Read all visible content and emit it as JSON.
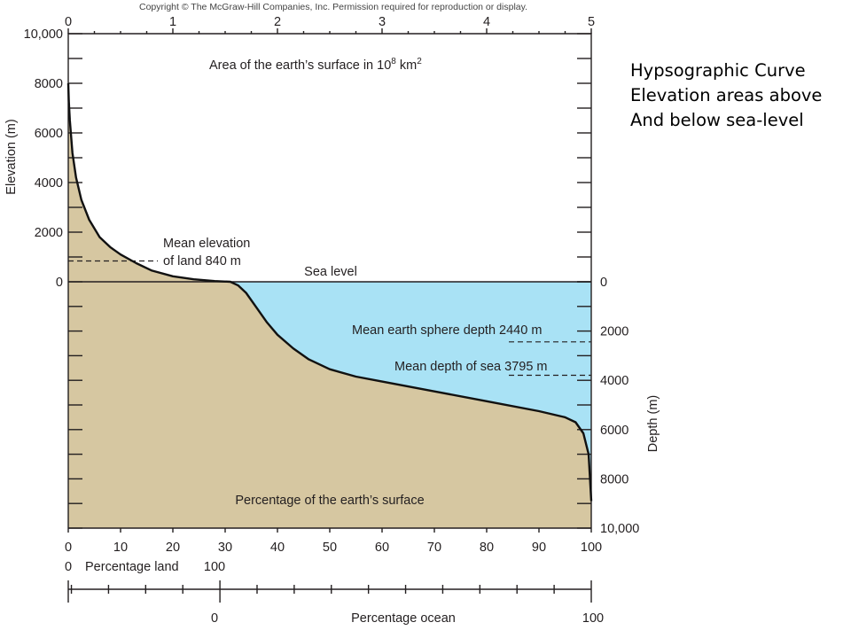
{
  "copyright": "Copyright © The McGraw-Hill Companies, Inc. Permission required for reproduction or display.",
  "side_title": "Hypsographic Curve\nElevation areas above\nAnd below sea-level",
  "chart_data": {
    "type": "area",
    "title": "Hypsographic Curve",
    "top_axis_label": "Area of the earth’s surface in 10",
    "top_axis_exp": "8",
    "top_axis_unit": " km",
    "top_axis_unit_exp": "2",
    "top_ticks": [
      "0",
      "1",
      "2",
      "3",
      "4",
      "5"
    ],
    "top_range": [
      0,
      5
    ],
    "xlabel": "Percentage of the earth’s surface",
    "x_ticks": [
      "0",
      "10",
      "20",
      "30",
      "40",
      "50",
      "60",
      "70",
      "80",
      "90",
      "100"
    ],
    "xlim": [
      0,
      100
    ],
    "ylabel_left": "Elevation (m)",
    "y_ticks_left": [
      "10,000",
      "8000",
      "6000",
      "4000",
      "2000",
      "0"
    ],
    "ylabel_right": "Depth (m)",
    "y_ticks_right": [
      "0",
      "2000",
      "4000",
      "6000",
      "8000",
      "10,000"
    ],
    "ylim": [
      -10000,
      10000
    ],
    "land_axis_label": "Percentage land",
    "land_ticks": [
      "0",
      "100"
    ],
    "ocean_axis_label": "Percentage ocean",
    "ocean_ticks": [
      "0",
      "100"
    ],
    "ocean_axis_range": [
      29,
      100
    ],
    "sea_level_label": "Sea level",
    "annotations": {
      "mean_land": "Mean elevation",
      "mean_land_2": "of land 840 m",
      "mean_sphere": "Mean earth sphere depth 2440 m",
      "mean_sea": "Mean depth of sea 3795 m"
    },
    "reference_lines": {
      "mean_land_elevation": 840,
      "mean_sphere_depth": -2440,
      "mean_sea_depth": -3795
    },
    "curve": {
      "x": [
        0,
        0.1,
        0.3,
        0.8,
        1.5,
        2.5,
        4,
        6,
        8,
        10,
        13,
        16,
        20,
        24,
        28,
        31,
        32.5,
        34,
        36,
        38,
        40,
        43,
        46,
        50,
        55,
        60,
        70,
        80,
        90,
        95,
        97,
        98.5,
        99.5,
        100
      ],
      "y": [
        8000,
        7300,
        6500,
        5200,
        4200,
        3300,
        2500,
        1800,
        1400,
        1100,
        750,
        450,
        220,
        100,
        30,
        0,
        -150,
        -450,
        -1050,
        -1650,
        -2150,
        -2700,
        -3150,
        -3550,
        -3850,
        -4050,
        -4450,
        -4850,
        -5250,
        -5500,
        -5700,
        -6150,
        -7000,
        -8900
      ]
    },
    "colors": {
      "land": "#d6c7a1",
      "ocean": "#a9e2f5",
      "curve": "#111111"
    },
    "grid": false,
    "legend": "none"
  }
}
